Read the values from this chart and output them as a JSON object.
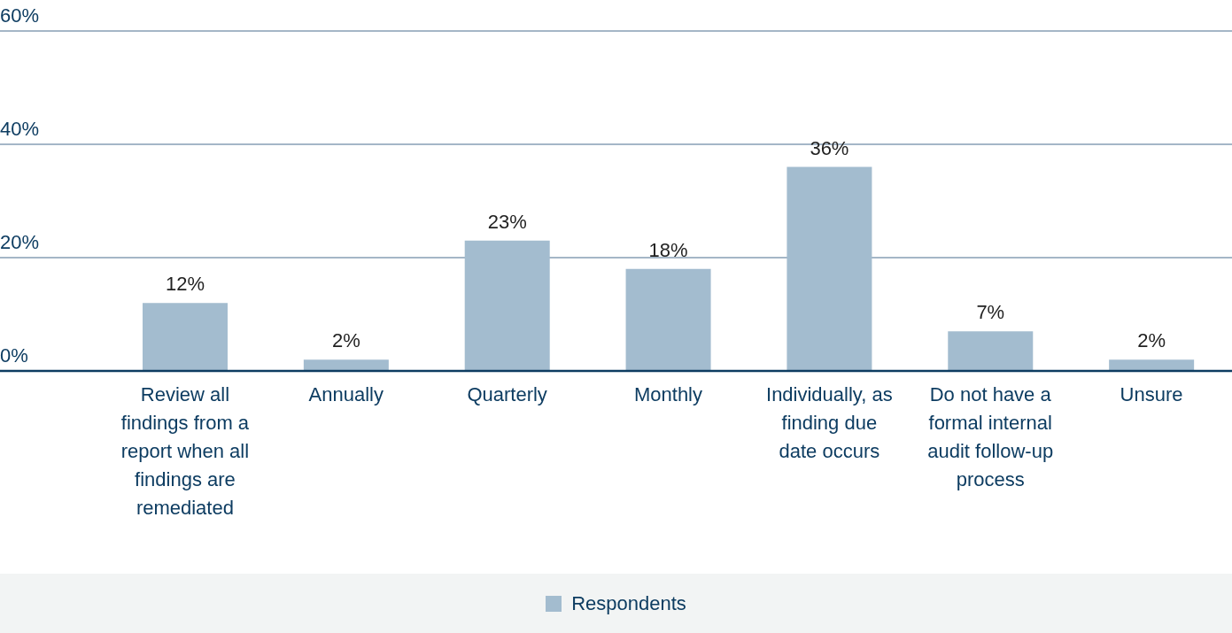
{
  "chart_data": {
    "type": "bar",
    "categories": [
      "Review all findings from a report when all findings are remediated",
      "Annually",
      "Quarterly",
      "Monthly",
      "Individually, as finding due date occurs",
      "Do not have a formal internal audit follow-up process",
      "Unsure"
    ],
    "series": [
      {
        "name": "Respondents",
        "color": "#a3bccf",
        "values": [
          12,
          2,
          23,
          18,
          36,
          7,
          2
        ],
        "value_labels": [
          "12%",
          "2%",
          "23%",
          "18%",
          "36%",
          "7%",
          "2%"
        ]
      }
    ],
    "ylim": [
      0,
      60
    ],
    "yticks": [
      {
        "value": 0,
        "label": "0%"
      },
      {
        "value": 20,
        "label": "20%"
      },
      {
        "value": 40,
        "label": "40%"
      },
      {
        "value": 60,
        "label": "60%"
      }
    ],
    "grid": "y",
    "legend": "bottom"
  }
}
